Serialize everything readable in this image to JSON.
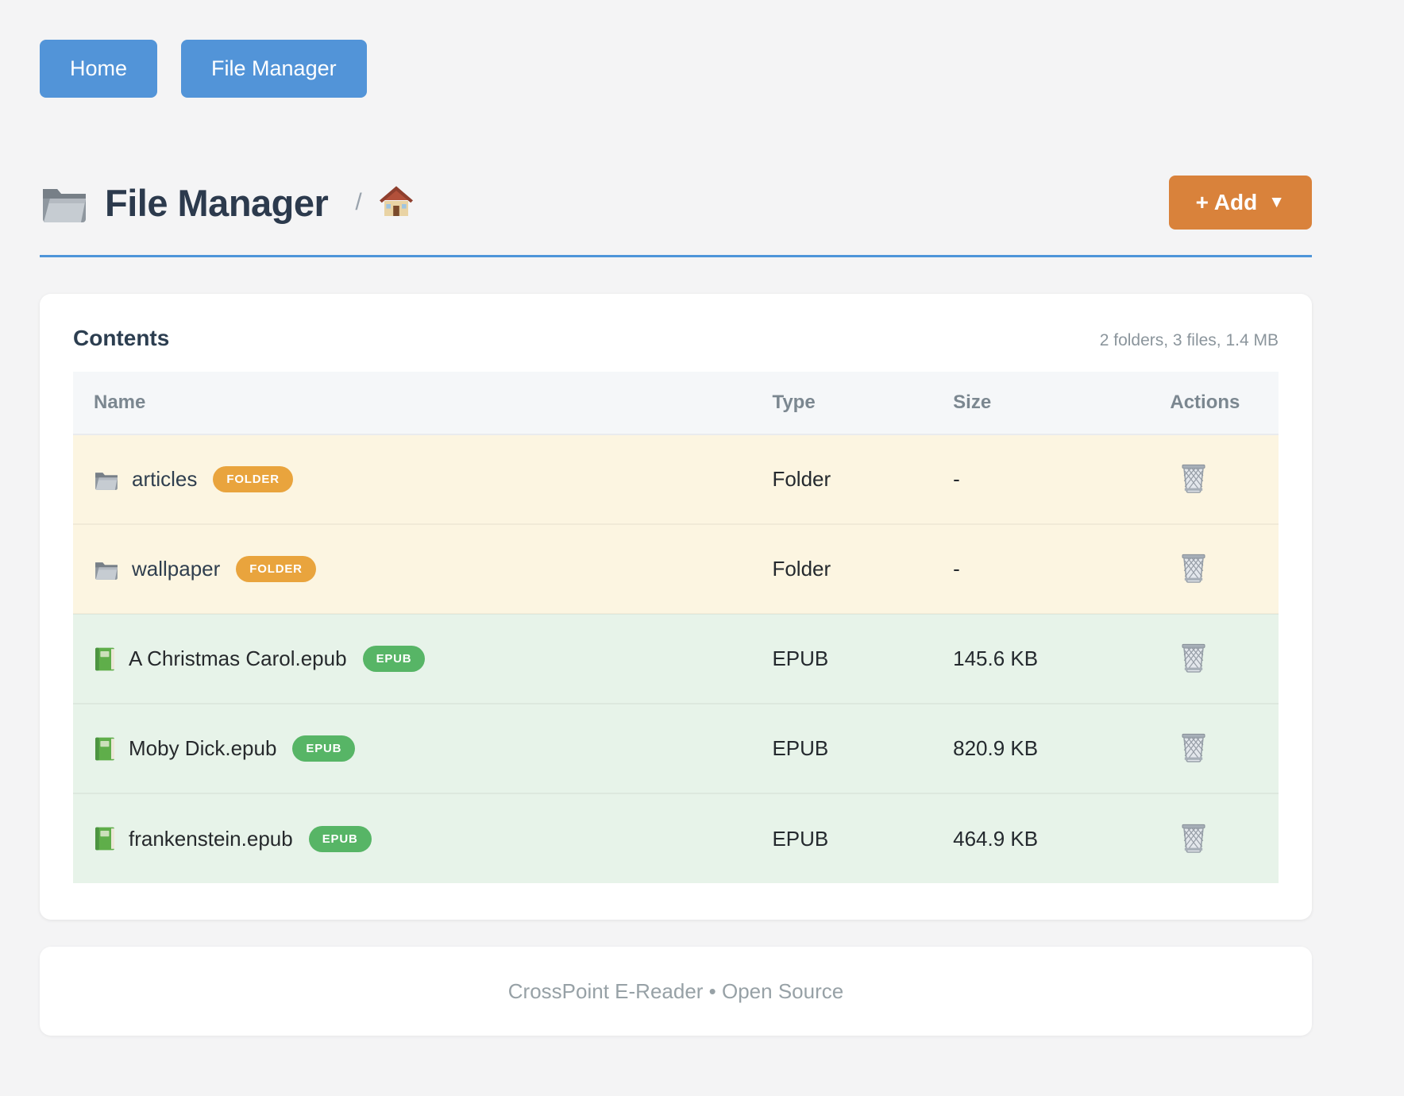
{
  "nav": {
    "items": [
      {
        "label": "Home"
      },
      {
        "label": "File Manager"
      }
    ]
  },
  "header": {
    "title": "File Manager",
    "title_icon": "folder-icon",
    "breadcrumb": {
      "separator": "/",
      "home_icon": "house-icon"
    },
    "add_button": {
      "label": "+ Add",
      "caret": "▼",
      "caret_icon": "caret-down-icon"
    }
  },
  "contents_card": {
    "title": "Contents",
    "summary": "2 folders, 3 files, 1.4 MB",
    "table": {
      "columns": [
        "Name",
        "Type",
        "Size",
        "Actions"
      ],
      "rows": [
        {
          "name": "articles",
          "icon": "folder-icon",
          "kind": "folder",
          "badge": "FOLDER",
          "type": "Folder",
          "size": "-",
          "action_icon": "trash-icon"
        },
        {
          "name": "wallpaper",
          "icon": "folder-icon",
          "kind": "folder",
          "badge": "FOLDER",
          "type": "Folder",
          "size": "-",
          "action_icon": "trash-icon"
        },
        {
          "name": "A Christmas Carol.epub",
          "icon": "book-icon",
          "kind": "epub",
          "badge": "EPUB",
          "type": "EPUB",
          "size": "145.6 KB",
          "action_icon": "trash-icon"
        },
        {
          "name": "Moby Dick.epub",
          "icon": "book-icon",
          "kind": "epub",
          "badge": "EPUB",
          "type": "EPUB",
          "size": "820.9 KB",
          "action_icon": "trash-icon"
        },
        {
          "name": "frankenstein.epub",
          "icon": "book-icon",
          "kind": "epub",
          "badge": "EPUB",
          "type": "EPUB",
          "size": "464.9 KB",
          "action_icon": "trash-icon"
        }
      ]
    }
  },
  "footer": {
    "text": "CrossPoint E-Reader • Open Source"
  },
  "colors": {
    "nav_button_blue": "#5294d8",
    "accent_orange": "#d9823b",
    "badge_orange": "#e9a43d",
    "badge_green": "#57b566",
    "divider_blue": "#4e95d9",
    "row_folder_bg": "#fcf5e1",
    "row_file_bg": "#e7f3e9"
  }
}
